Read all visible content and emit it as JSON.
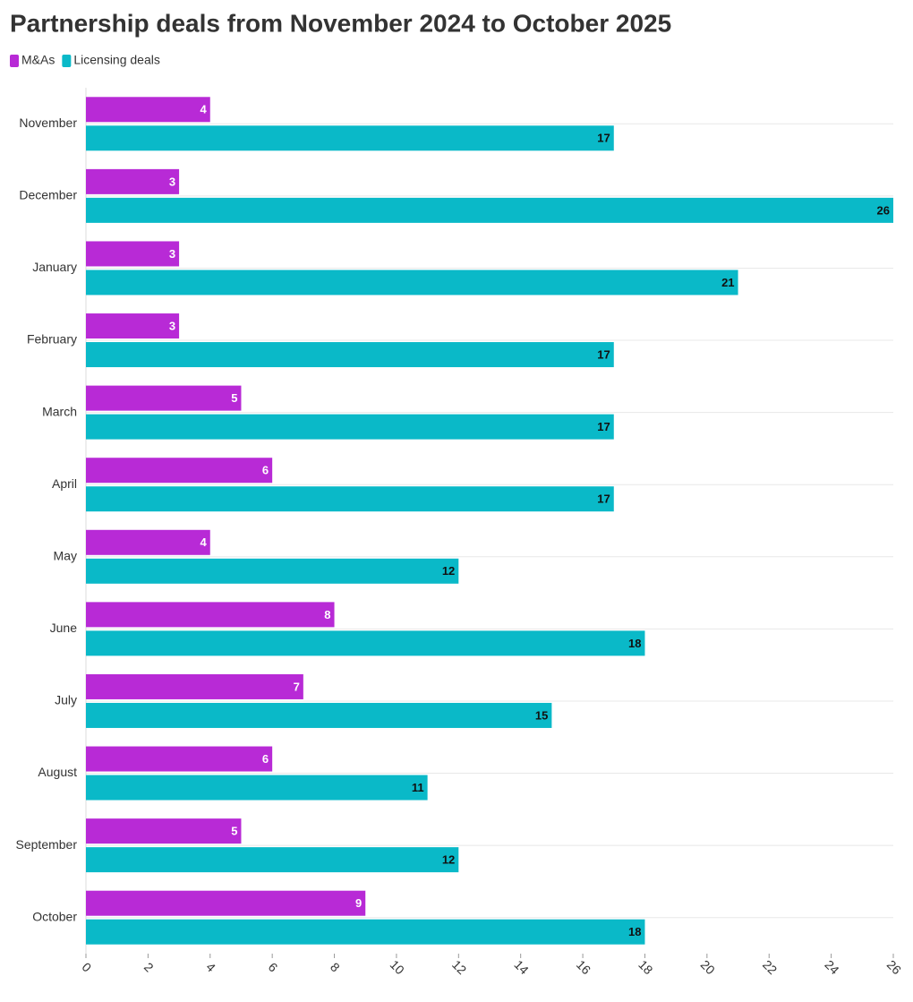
{
  "chart_data": {
    "type": "hbar",
    "title": "Partnership deals from November 2024 to October 2025",
    "categories": [
      "November",
      "December",
      "January",
      "February",
      "March",
      "April",
      "May",
      "June",
      "July",
      "August",
      "September",
      "October"
    ],
    "series": [
      {
        "name": "M&As",
        "color": "#b82ad6",
        "values": [
          4,
          3,
          3,
          3,
          5,
          6,
          4,
          8,
          7,
          6,
          5,
          9
        ]
      },
      {
        "name": "Licensing deals",
        "color": "#0ab9c8",
        "values": [
          17,
          26,
          21,
          17,
          17,
          17,
          12,
          18,
          15,
          11,
          12,
          18
        ]
      }
    ],
    "xlim": [
      0,
      26
    ],
    "xticks": [
      0,
      2,
      4,
      6,
      8,
      10,
      12,
      14,
      16,
      18,
      20,
      22,
      24,
      26
    ],
    "grid": true
  }
}
